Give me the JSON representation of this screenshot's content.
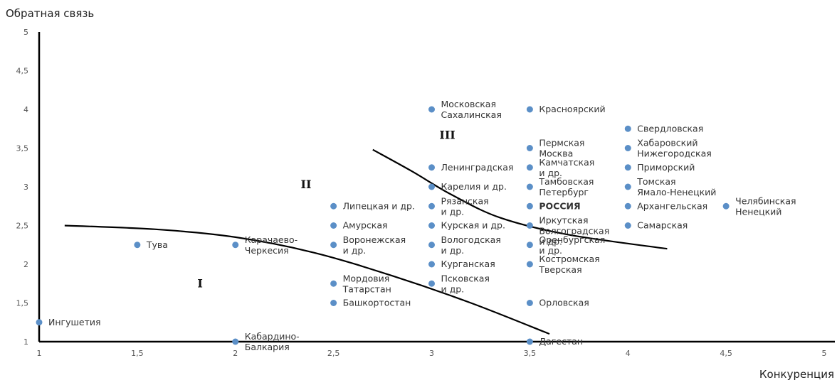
{
  "chart_data": {
    "type": "scatter",
    "xlabel": "Конкуренция",
    "ylabel": "Обратная связь",
    "xlim": [
      1,
      5
    ],
    "ylim": [
      1,
      5
    ],
    "x_ticks": [
      "1",
      "1,5",
      "2",
      "2,5",
      "3",
      "3,5",
      "4",
      "4,5",
      "5"
    ],
    "y_ticks": [
      "1",
      "1,5",
      "2",
      "2,5",
      "3",
      "3,5",
      "4",
      "4,5",
      "5"
    ],
    "grid": false,
    "points": [
      {
        "x": 1,
        "y": 1.25,
        "label": "Ингушетия"
      },
      {
        "x": 1.5,
        "y": 2.25,
        "label": "Тува"
      },
      {
        "x": 2,
        "y": 2.25,
        "label": "Карачаево-\nЧеркесия"
      },
      {
        "x": 2,
        "y": 1,
        "label": "Кабардино-\nБалкария"
      },
      {
        "x": 2.5,
        "y": 2.75,
        "label": "Липецкая и др."
      },
      {
        "x": 2.5,
        "y": 2.5,
        "label": "Амурская"
      },
      {
        "x": 2.5,
        "y": 2.25,
        "label": "Воронежская\nи др."
      },
      {
        "x": 2.5,
        "y": 1.75,
        "label": "Мордовия\nТатарстан"
      },
      {
        "x": 2.5,
        "y": 1.5,
        "label": "Башкортостан"
      },
      {
        "x": 3,
        "y": 4,
        "label": "Московская\nСахалинская"
      },
      {
        "x": 3,
        "y": 3.25,
        "label": "Ленинградская"
      },
      {
        "x": 3,
        "y": 3,
        "label": "Карелия и др."
      },
      {
        "x": 3,
        "y": 2.75,
        "label": "Рязанская\nи др."
      },
      {
        "x": 3,
        "y": 2.5,
        "label": "Курская и др."
      },
      {
        "x": 3,
        "y": 2.25,
        "label": "Вологодская\nи др."
      },
      {
        "x": 3,
        "y": 2,
        "label": "Курганская"
      },
      {
        "x": 3,
        "y": 1.75,
        "label": "Псковская\nи др."
      },
      {
        "x": 3.5,
        "y": 4,
        "label": "Красноярский"
      },
      {
        "x": 3.5,
        "y": 3.5,
        "label": "Пермская\nМосква"
      },
      {
        "x": 3.5,
        "y": 3.25,
        "label": "Камчатская\nи др."
      },
      {
        "x": 3.5,
        "y": 3,
        "label": "Тамбовская\nПетербург"
      },
      {
        "x": 3.5,
        "y": 2.75,
        "label": "РОССИЯ",
        "bold": true
      },
      {
        "x": 3.5,
        "y": 2.5,
        "label": "Иркутская\nВолгоградская\nи др."
      },
      {
        "x": 3.5,
        "y": 2.25,
        "label": "Оренбургская\nи др."
      },
      {
        "x": 3.5,
        "y": 2,
        "label": "Костромская\nТверская"
      },
      {
        "x": 3.5,
        "y": 1.5,
        "label": "Орловская"
      },
      {
        "x": 3.5,
        "y": 1,
        "label": "Дагестан"
      },
      {
        "x": 4,
        "y": 3.75,
        "label": "Свердловская"
      },
      {
        "x": 4,
        "y": 3.5,
        "label": "Хабаровский\nНижегородская"
      },
      {
        "x": 4,
        "y": 3.25,
        "label": "Приморский"
      },
      {
        "x": 4,
        "y": 3,
        "label": "Томская\nЯмало-Ненецкий"
      },
      {
        "x": 4,
        "y": 2.75,
        "label": "Архангельская"
      },
      {
        "x": 4,
        "y": 2.5,
        "label": "Самарская"
      },
      {
        "x": 4.5,
        "y": 2.75,
        "label": "Челябинская\nНенецкий"
      }
    ],
    "region_labels": [
      {
        "text": "I",
        "x": 1.82,
        "y": 1.7
      },
      {
        "text": "II",
        "x": 2.36,
        "y": 2.98
      },
      {
        "text": "III",
        "x": 3.08,
        "y": 3.62
      }
    ],
    "boundary_curves": [
      [
        [
          1.13,
          2.5
        ],
        [
          1.6,
          2.45
        ],
        [
          2.0,
          2.35
        ],
        [
          2.4,
          2.15
        ],
        [
          2.8,
          1.85
        ],
        [
          3.2,
          1.5
        ],
        [
          3.6,
          1.1
        ]
      ],
      [
        [
          2.7,
          3.48
        ],
        [
          2.9,
          3.2
        ],
        [
          3.1,
          2.9
        ],
        [
          3.35,
          2.6
        ],
        [
          3.7,
          2.38
        ],
        [
          4.2,
          2.2
        ]
      ]
    ],
    "point_color": "#5b8fc7",
    "line_color": "#000000"
  }
}
